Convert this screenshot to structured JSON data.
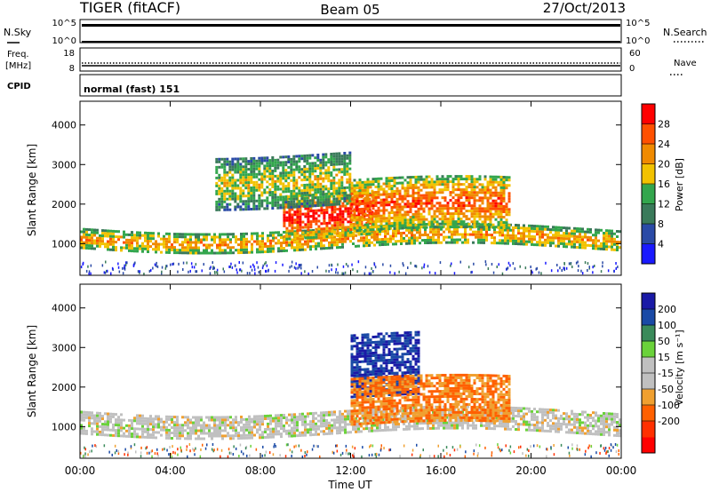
{
  "header": {
    "radar": "TIGER (fitACF)",
    "beam": "Beam 05",
    "date": "27/Oct/2013"
  },
  "top_panels": {
    "nsky_label": "N.Sky",
    "nsky_ticks": [
      "10^5",
      "10^0"
    ],
    "nsearch_label": "N.Search",
    "nsearch_ticks": [
      "10^5",
      "10^0"
    ],
    "freq_label_1": "Freq.",
    "freq_label_2": "[MHz]",
    "freq_ticks": [
      "18",
      "8"
    ],
    "nave_label": "Nave",
    "nave_ticks": [
      "60",
      "0"
    ],
    "cpid_label": "CPID",
    "cpid_text": "normal (fast) 151"
  },
  "colors": {
    "power": [
      "#1a1aff",
      "#2a4aa6",
      "#3a7a5a",
      "#33a64d",
      "#f2c200",
      "#f08a00",
      "#ff5000",
      "#ff0000"
    ],
    "velocity": [
      "#1a1aa6",
      "#1a4aa6",
      "#3a8a5a",
      "#6ad23a",
      "#c0c0c0",
      "#c0c0c0",
      "#f0a030",
      "#ff6000",
      "#ff3000",
      "#ff0000"
    ]
  },
  "chart_data": [
    {
      "type": "heatmap",
      "title": "",
      "ylabel": "Slant Range [km]",
      "xlabel": "",
      "ylim": [
        200,
        4600
      ],
      "yticks": [
        "1000",
        "2000",
        "3000",
        "4000"
      ],
      "colorbar_label": "Power [dB]",
      "colorbar_ticks": [
        "4",
        "8",
        "12",
        "16",
        "20",
        "24",
        "28"
      ],
      "features": [
        {
          "name": "main band",
          "x_hours": [
            0,
            24
          ],
          "range_km": [
            900,
            1400
          ],
          "power_db": 20
        },
        {
          "name": "intense patch",
          "x_hours": [
            9,
            13
          ],
          "range_km": [
            1200,
            2300
          ],
          "power_db": 28
        },
        {
          "name": "upper echoes",
          "x_hours": [
            6,
            12
          ],
          "range_km": [
            2000,
            3300
          ],
          "power_db": 16
        },
        {
          "name": "late echoes",
          "x_hours": [
            12,
            19
          ],
          "range_km": [
            1300,
            2600
          ],
          "power_db": 24
        }
      ]
    },
    {
      "type": "heatmap",
      "title": "",
      "ylabel": "Slant Range [km]",
      "xlabel": "Time UT",
      "ylim": [
        200,
        4600
      ],
      "yticks": [
        "1000",
        "2000",
        "3000",
        "4000"
      ],
      "xticks": [
        "00:00",
        "04:00",
        "08:00",
        "12:00",
        "16:00",
        "20:00",
        "00:00"
      ],
      "colorbar_label": "Velocity [m s⁻¹]",
      "colorbar_ticks": [
        "200",
        "100",
        "50",
        "15",
        "-15",
        "-50",
        "-100",
        "-200"
      ],
      "features": [
        {
          "name": "ground scatter band",
          "x_hours": [
            0,
            24
          ],
          "range_km": [
            800,
            1400
          ],
          "velocity": 0
        },
        {
          "name": "positive flow",
          "x_hours": [
            12,
            15
          ],
          "range_km": [
            1700,
            3300
          ],
          "velocity": 150
        },
        {
          "name": "negative flow",
          "x_hours": [
            12,
            19
          ],
          "range_km": [
            1000,
            2200
          ],
          "velocity": -50
        }
      ]
    }
  ]
}
